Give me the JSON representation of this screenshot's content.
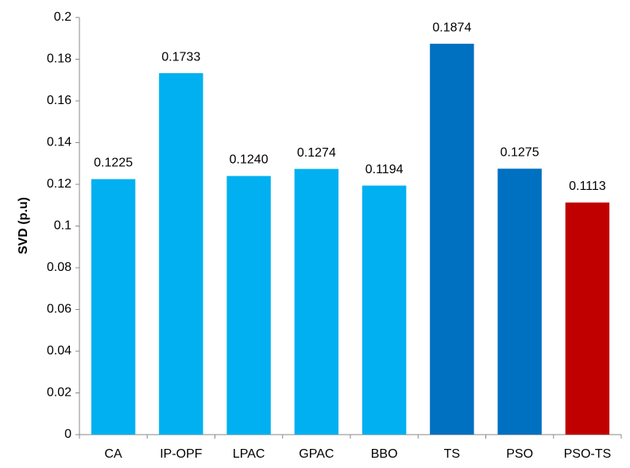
{
  "chart_data": {
    "type": "bar",
    "y_label": "SVD (p.u)",
    "categories": [
      "CA",
      "IP-OPF",
      "LPAC",
      "GPAC",
      "BBO",
      "TS",
      "PSO",
      "PSO-TS"
    ],
    "values": [
      0.1225,
      0.1733,
      0.124,
      0.1274,
      0.1194,
      0.1874,
      0.1275,
      0.1113
    ],
    "value_labels": [
      "0.1225",
      "0.1733",
      "0.1240",
      "0.1274",
      "0.1194",
      "0.1874",
      "0.1275",
      "0.1113"
    ],
    "colors": [
      "#00b0f0",
      "#00b0f0",
      "#00b0f0",
      "#00b0f0",
      "#00b0f0",
      "#0070c0",
      "#0070c0",
      "#c00000"
    ],
    "ylim": [
      0,
      0.2
    ],
    "yticks": [
      0,
      0.02,
      0.04,
      0.06,
      0.08,
      0.1,
      0.12,
      0.14,
      0.16,
      0.18,
      0.2
    ],
    "grid": false
  }
}
